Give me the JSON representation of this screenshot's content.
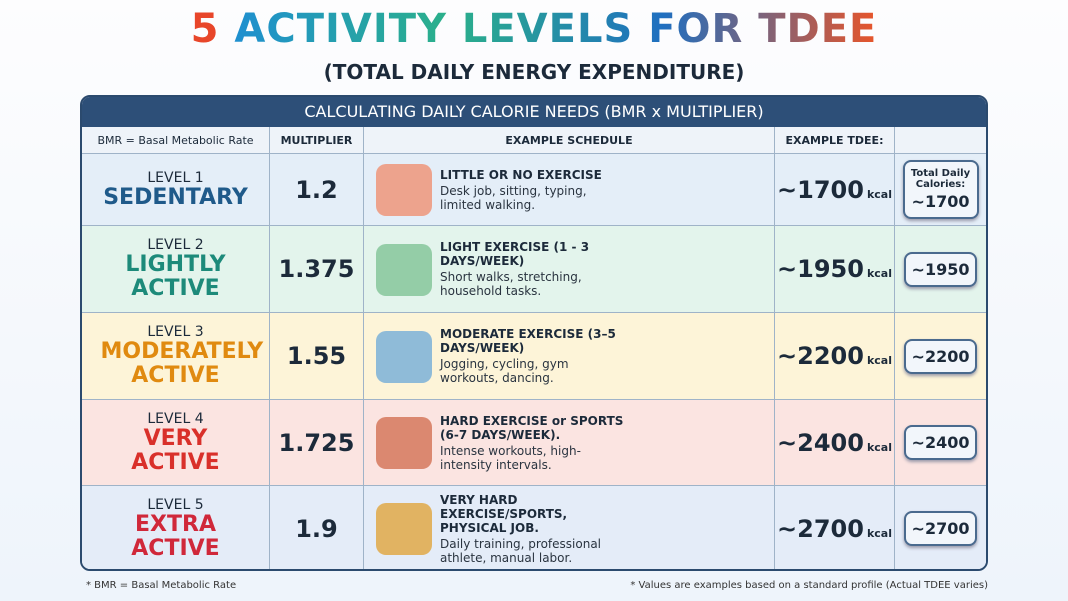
{
  "header": {
    "title_number": "5",
    "title": "ACTIVITY LEVELS FOR TDEE",
    "subtitle": "(TOTAL DAILY ENERGY EXPENDITURE)"
  },
  "table": {
    "banner": "CALCULATING DAILY CALORIE NEEDS (BMR x MULTIPLIER)",
    "columns": [
      "BMR = Basal Metabolic Rate",
      "MULTIPLIER",
      "EXAMPLE SCHEDULE",
      "EXAMPLE TDEE:"
    ],
    "total_header": "Total Daily Calories:",
    "rows": [
      {
        "level": "LEVEL 1",
        "name": "SEDENTARY",
        "multiplier": "1.2",
        "schedule_title": "LITTLE OR NO EXERCISE",
        "schedule_text": "Desk job, sitting, typing, limited walking.",
        "tdee": "~1700",
        "unit": "kcal",
        "total": "~1700"
      },
      {
        "level": "LEVEL 2",
        "name": "LIGHTLY ACTIVE",
        "multiplier": "1.375",
        "schedule_title": "LIGHT EXERCISE (1 - 3 DAYS/WEEK)",
        "schedule_text": "Short walks, stretching, household tasks.",
        "tdee": "~1950",
        "unit": "kcal",
        "total": "~1950"
      },
      {
        "level": "LEVEL 3",
        "name": "MODERATELY ACTIVE",
        "multiplier": "1.55",
        "schedule_title": "MODERATE EXERCISE (3–5 DAYS/WEEK)",
        "schedule_text": "Jogging, cycling, gym workouts, dancing.",
        "tdee": "~2200",
        "unit": "kcal",
        "total": "~2200"
      },
      {
        "level": "LEVEL 4",
        "name": "VERY ACTIVE",
        "multiplier": "1.725",
        "schedule_title": "HARD EXERCISE or SPORTS (6-7 DAYS/WEEK).",
        "schedule_text": "Intense workouts, high-intensity intervals.",
        "tdee": "~2400",
        "unit": "kcal",
        "total": "~2400"
      },
      {
        "level": "LEVEL 5",
        "name": "EXTRA ACTIVE",
        "multiplier": "1.9",
        "schedule_title": "VERY HARD EXERCISE/SPORTS, PHYSICAL JOB.",
        "schedule_text": "Daily training, professional athlete, manual labor.",
        "tdee": "~2700",
        "unit": "kcal",
        "total": "~2700"
      }
    ]
  },
  "footer": {
    "left": "* BMR = Basal Metabolic Rate",
    "right": "* Values are examples based on a standard profile (Actual TDEE varies)"
  }
}
